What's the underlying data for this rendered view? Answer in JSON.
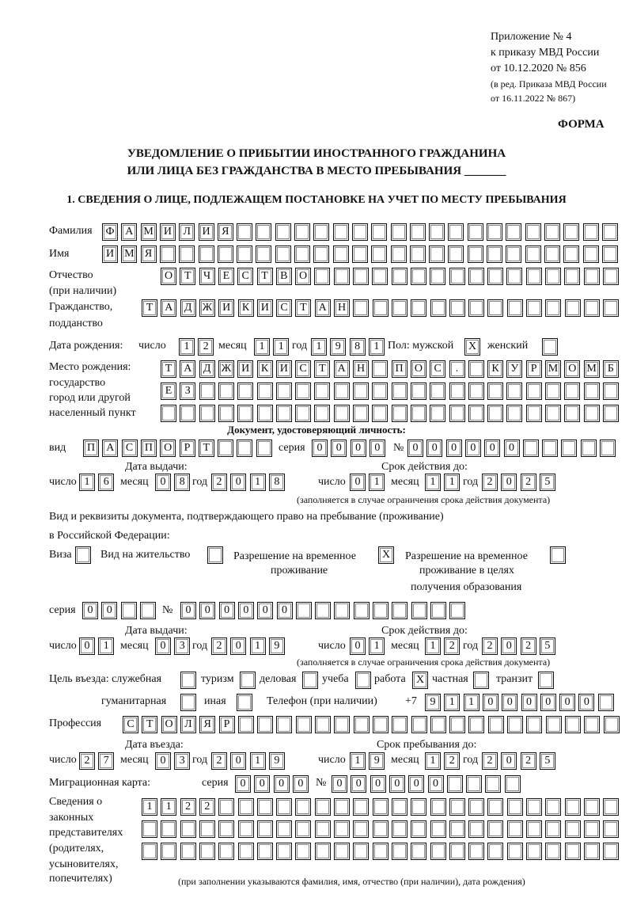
{
  "header": {
    "appendix": "Приложение № 4",
    "order_line": "к приказу МВД России",
    "order_date": "от 10.12.2020 № 856",
    "revision_1": "(в ред. Приказа МВД России",
    "revision_2": "от 16.11.2022 № 867)",
    "form_label": "ФОРМА",
    "title_1": "УВЕДОМЛЕНИЕ О ПРИБЫТИИ ИНОСТРАННОГО ГРАЖДАНИНА",
    "title_2": "ИЛИ ЛИЦА БЕЗ ГРАЖДАНСТВА В МЕСТО ПРЕБЫВАНИЯ",
    "title_blank": "_______",
    "section_1": "1. СВЕДЕНИЯ О ЛИЦЕ, ПОДЛЕЖАЩЕМ ПОСТАНОВКЕ НА УЧЕТ ПО МЕСТУ ПРЕБЫВАНИЯ"
  },
  "labels": {
    "surname": "Фамилия",
    "name": "Имя",
    "patronymic_1": "Отчество",
    "patronymic_2": "(при наличии)",
    "citizenship_1": "Гражданство,",
    "citizenship_2": "подданство",
    "birth_date": "Дата рождения:",
    "day": "число",
    "month": "месяц",
    "year": "год",
    "sex_male": "Пол: мужской",
    "sex_female": "женский",
    "birthplace_1": "Место рождения:",
    "birthplace_2": "государство",
    "birthplace_3": "город или другой",
    "birthplace_4": "населенный пункт",
    "id_doc": "Документ, удостоверяющий личность:",
    "kind": "вид",
    "series": "серия",
    "number": "№",
    "issue_date": "Дата выдачи:",
    "valid_until": "Срок действия до:",
    "validity_note": "(заполняется в случае ограничения срока действия документа)",
    "stay_doc_1": "Вид и реквизиты документа, подтверждающего право на пребывание (проживание)",
    "stay_doc_2": "в Российской Федерации:",
    "visa": "Виза",
    "residence_permit": "Вид на жительство",
    "temp_permit_1": "Разрешение на временное",
    "temp_permit_2": "проживание",
    "temp_edu_1": "Разрешение на временное",
    "temp_edu_2": "проживание в целях",
    "temp_edu_3": "получения образования",
    "purpose": "Цель въезда: служебная",
    "tourism": "туризм",
    "business": "деловая",
    "study": "учеба",
    "work": "работа",
    "private": "частная",
    "transit": "транзит",
    "humanitarian": "гуманитарная",
    "other": "иная",
    "phone": "Телефон (при наличии)",
    "phone_prefix": "+7",
    "profession": "Профессия",
    "entry_date": "Дата въезда:",
    "stay_until": "Срок пребывания до:",
    "migration_card": "Миграционная карта:",
    "reps_1": "Сведения о",
    "reps_2": "законных",
    "reps_3": "представителях",
    "reps_4": "(родителях,",
    "reps_5": "усыновителях,",
    "reps_6": "попечителях)",
    "reps_note": "(при заполнении указываются фамилия, имя, отчество (при наличии), дата рождения)"
  },
  "values": {
    "surname": [
      "Ф",
      "А",
      "М",
      "И",
      "Л",
      "И",
      "Я"
    ],
    "name": [
      "И",
      "М",
      "Я"
    ],
    "patronymic": [
      "О",
      "Т",
      "Ч",
      "Е",
      "С",
      "Т",
      "В",
      "О"
    ],
    "citizenship": [
      "Т",
      "А",
      "Д",
      "Ж",
      "И",
      "К",
      "И",
      "С",
      "Т",
      "А",
      "Н"
    ],
    "birth_day": [
      "1",
      "2"
    ],
    "birth_month": [
      "1",
      "1"
    ],
    "birth_year": [
      "1",
      "9",
      "8",
      "1"
    ],
    "sex_male": "X",
    "sex_female": "",
    "birthplace_1": [
      "Т",
      "А",
      "Д",
      "Ж",
      "И",
      "К",
      "И",
      "С",
      "Т",
      "А",
      "Н",
      "",
      "П",
      "О",
      "С",
      ".",
      "",
      "К",
      "У",
      "Р",
      "М",
      "О",
      "М",
      "Б"
    ],
    "birthplace_2": [
      "Е",
      "З"
    ],
    "birthplace_3": [],
    "id_kind": [
      "П",
      "А",
      "С",
      "П",
      "О",
      "Р",
      "Т"
    ],
    "id_series": [
      "0",
      "0",
      "0",
      "0"
    ],
    "id_number": [
      "0",
      "0",
      "0",
      "0",
      "0",
      "0"
    ],
    "id_issue_day": [
      "1",
      "6"
    ],
    "id_issue_month": [
      "0",
      "8"
    ],
    "id_issue_year": [
      "2",
      "0",
      "1",
      "8"
    ],
    "id_valid_day": [
      "0",
      "1"
    ],
    "id_valid_month": [
      "1",
      "1"
    ],
    "id_valid_year": [
      "2",
      "0",
      "2",
      "5"
    ],
    "visa": "",
    "residence_permit": "",
    "temp_permit": "X",
    "temp_edu": "",
    "stay_series": [
      "0",
      "0"
    ],
    "stay_number": [
      "0",
      "0",
      "0",
      "0",
      "0",
      "0"
    ],
    "stay_issue_day": [
      "0",
      "1"
    ],
    "stay_issue_month": [
      "0",
      "3"
    ],
    "stay_issue_year": [
      "2",
      "0",
      "1",
      "9"
    ],
    "stay_valid_day": [
      "0",
      "1"
    ],
    "stay_valid_month": [
      "1",
      "2"
    ],
    "stay_valid_year": [
      "2",
      "0",
      "2",
      "5"
    ],
    "purpose_official": "",
    "purpose_tourism": "",
    "purpose_business": "",
    "purpose_study": "",
    "purpose_work": "X",
    "purpose_private": "",
    "purpose_transit": "",
    "purpose_humanitarian": "",
    "purpose_other": "",
    "phone": [
      "9",
      "1",
      "1",
      "0",
      "0",
      "0",
      "0",
      "0",
      "0"
    ],
    "profession": [
      "С",
      "Т",
      "О",
      "Л",
      "Я",
      "Р"
    ],
    "entry_day": [
      "2",
      "7"
    ],
    "entry_month": [
      "0",
      "3"
    ],
    "entry_year": [
      "2",
      "0",
      "1",
      "9"
    ],
    "stay_until_day": [
      "1",
      "9"
    ],
    "stay_until_month": [
      "1",
      "2"
    ],
    "stay_until_year": [
      "2",
      "0",
      "2",
      "5"
    ],
    "mig_series": [
      "0",
      "0",
      "0",
      "0"
    ],
    "mig_number": [
      "0",
      "0",
      "0",
      "0",
      "0",
      "0"
    ],
    "reps_1": [
      "1",
      "1",
      "2",
      "2"
    ],
    "reps_2": [],
    "reps_3": []
  }
}
